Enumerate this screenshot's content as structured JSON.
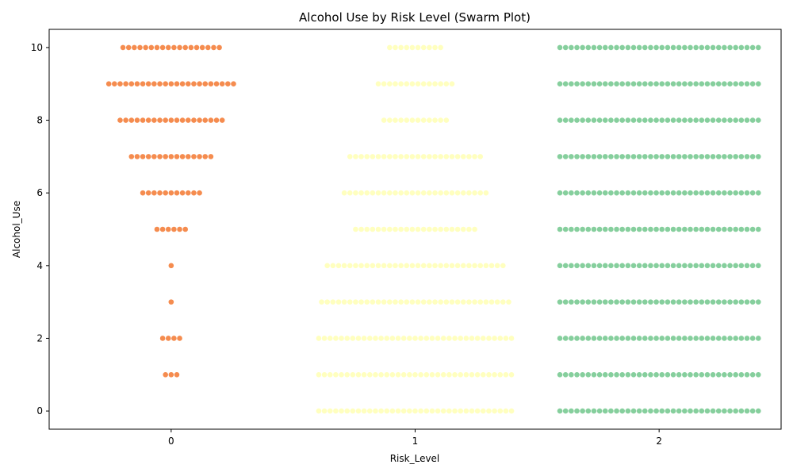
{
  "chart_data": {
    "type": "scatter",
    "subtype": "swarm",
    "title": "Alcohol Use by Risk Level (Swarm Plot)",
    "xlabel": "Risk_Level",
    "ylabel": "Alcohol_Use",
    "x_categories": [
      "0",
      "1",
      "2"
    ],
    "xlim": [
      -0.5,
      2.5
    ],
    "ylim": [
      -0.5,
      10.5
    ],
    "yticks": [
      0,
      2,
      4,
      6,
      8,
      10
    ],
    "grid": false,
    "legend": "none",
    "series": [
      {
        "category": "0",
        "color": "#f58c4f",
        "points_per_alcohol_use": {
          "0": 0,
          "1": 3,
          "2": 4,
          "3": 1,
          "4": 1,
          "5": 6,
          "6": 11,
          "7": 15,
          "8": 19,
          "9": 23,
          "10": 18
        }
      },
      {
        "category": "1",
        "color": "#ffffbf",
        "points_per_alcohol_use": {
          "0": 35,
          "1": 35,
          "2": 35,
          "3": 34,
          "4": 32,
          "5": 22,
          "6": 26,
          "7": 24,
          "8": 12,
          "9": 14,
          "10": 10
        }
      },
      {
        "category": "2",
        "color": "#86cf9d",
        "points_per_alcohol_use": {
          "0": 36,
          "1": 36,
          "2": 36,
          "3": 36,
          "4": 36,
          "5": 36,
          "6": 36,
          "7": 36,
          "8": 36,
          "9": 36,
          "10": 36
        }
      }
    ]
  }
}
